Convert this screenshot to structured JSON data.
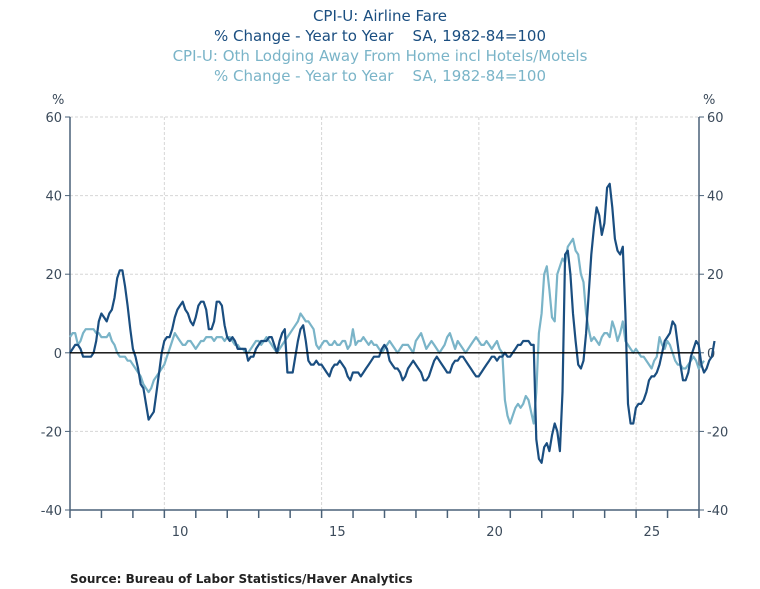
{
  "chart_data": {
    "type": "line",
    "titles": [
      {
        "text": "CPI-U: Airline Fare",
        "series": 0
      },
      {
        "text": "% Change - Year to Year    SA, 1982-84=100",
        "series": 0
      },
      {
        "text": "CPI-U: Oth Lodging Away From Home incl Hotels/Motels",
        "series": 1
      },
      {
        "text": "% Change - Year to Year    SA, 1982-84=100",
        "series": 1
      }
    ],
    "ylabel_left": "%",
    "ylabel_right": "%",
    "ylim": [
      -40,
      60
    ],
    "yticks": [
      60,
      40,
      20,
      0,
      -20,
      -40
    ],
    "xlim": [
      2007,
      2027
    ],
    "xtick_labels": [
      {
        "year": 2010,
        "label": "10"
      },
      {
        "year": 2015,
        "label": "15"
      },
      {
        "year": 2020,
        "label": "20"
      },
      {
        "year": 2025,
        "label": "25"
      }
    ],
    "grid": true,
    "x_start": 2007.0,
    "x_step": 0.0833,
    "series": [
      {
        "name": "CPI-U: Airline Fare",
        "color": "#1a4e80",
        "values": [
          0,
          1,
          2,
          2,
          1,
          -1,
          -1,
          -1,
          -1,
          0,
          3,
          8,
          10,
          9,
          8,
          10,
          11,
          14,
          19,
          21,
          21,
          17,
          12,
          6,
          1,
          -1,
          -4,
          -8,
          -9,
          -13,
          -17,
          -16,
          -15,
          -10,
          -5,
          0,
          3,
          4,
          4,
          6,
          9,
          11,
          12,
          13,
          11,
          10,
          8,
          7,
          9,
          12,
          13,
          13,
          11,
          6,
          6,
          8,
          13,
          13,
          12,
          7,
          4,
          3,
          4,
          3,
          1,
          1,
          1,
          1,
          -2,
          -1,
          -1,
          1,
          2,
          3,
          3,
          3,
          4,
          4,
          2,
          0,
          3,
          5,
          6,
          -5,
          -5,
          -5,
          -1,
          3,
          6,
          7,
          3,
          -2,
          -3,
          -3,
          -2,
          -3,
          -3,
          -4,
          -5,
          -6,
          -4,
          -3,
          -3,
          -2,
          -3,
          -4,
          -6,
          -7,
          -5,
          -5,
          -5,
          -6,
          -5,
          -4,
          -3,
          -2,
          -1,
          -1,
          -1,
          1,
          2,
          1,
          -2,
          -3,
          -4,
          -4,
          -5,
          -7,
          -6,
          -4,
          -3,
          -2,
          -3,
          -4,
          -5,
          -7,
          -7,
          -6,
          -4,
          -2,
          -1,
          -2,
          -3,
          -4,
          -5,
          -5,
          -3,
          -2,
          -2,
          -1,
          -1,
          -2,
          -3,
          -4,
          -5,
          -6,
          -6,
          -5,
          -4,
          -3,
          -2,
          -1,
          -1,
          -2,
          -1,
          -1,
          0,
          -1,
          -1,
          0,
          1,
          2,
          2,
          3,
          3,
          3,
          2,
          2,
          -22,
          -27,
          -28,
          -24,
          -23,
          -25,
          -21,
          -18,
          -20,
          -25,
          -10,
          25,
          26,
          20,
          10,
          3,
          -3,
          -4,
          -2,
          5,
          15,
          25,
          32,
          37,
          35,
          30,
          33,
          42,
          43,
          37,
          29,
          26,
          25,
          27,
          10,
          -13,
          -18,
          -18,
          -14,
          -13,
          -13,
          -12,
          -10,
          -7,
          -6,
          -6,
          -5,
          -3,
          0,
          3,
          4,
          5,
          8,
          7,
          2,
          -3,
          -7,
          -7,
          -5,
          -1,
          1,
          3,
          2,
          -3,
          -5,
          -4,
          -2,
          -1,
          3
        ]
      },
      {
        "name": "CPI-U: Oth Lodging Away From Home incl Hotels/Motels",
        "color": "#7ab4c8",
        "values": [
          4,
          5,
          5,
          2,
          3,
          5,
          6,
          6,
          6,
          6,
          5,
          5,
          4,
          4,
          4,
          5,
          3,
          2,
          0,
          -1,
          -1,
          -1,
          -2,
          -2,
          -3,
          -4,
          -5,
          -6,
          -8,
          -9,
          -10,
          -9,
          -7,
          -6,
          -5,
          -4,
          -3,
          -1,
          1,
          3,
          5,
          4,
          3,
          2,
          2,
          3,
          3,
          2,
          1,
          2,
          3,
          3,
          4,
          4,
          4,
          3,
          4,
          4,
          4,
          3,
          4,
          4,
          3,
          2,
          2,
          1,
          1,
          0,
          0,
          1,
          2,
          3,
          3,
          2,
          3,
          4,
          3,
          2,
          1,
          0,
          1,
          2,
          3,
          4,
          5,
          6,
          7,
          8,
          10,
          9,
          8,
          8,
          7,
          6,
          2,
          1,
          2,
          3,
          3,
          2,
          2,
          3,
          2,
          2,
          3,
          3,
          1,
          2,
          6,
          2,
          3,
          3,
          4,
          3,
          2,
          3,
          2,
          2,
          1,
          0,
          1,
          2,
          3,
          2,
          1,
          0,
          1,
          2,
          2,
          2,
          1,
          0,
          3,
          4,
          5,
          3,
          1,
          2,
          3,
          2,
          1,
          0,
          1,
          2,
          4,
          5,
          3,
          1,
          3,
          2,
          1,
          0,
          1,
          2,
          3,
          4,
          3,
          2,
          2,
          3,
          2,
          1,
          2,
          3,
          1,
          0,
          -12,
          -16,
          -18,
          -16,
          -14,
          -13,
          -14,
          -13,
          -11,
          -12,
          -15,
          -18,
          -10,
          5,
          10,
          20,
          22,
          16,
          9,
          8,
          20,
          22,
          24,
          23,
          27,
          28,
          29,
          26,
          25,
          20,
          18,
          10,
          6,
          3,
          4,
          3,
          2,
          4,
          5,
          5,
          4,
          8,
          6,
          3,
          5,
          8,
          3,
          2,
          1,
          0,
          1,
          0,
          -1,
          -1,
          -2,
          -3,
          -4,
          -2,
          -1,
          4,
          2,
          1,
          3,
          2,
          0,
          -2,
          -3,
          -3,
          -4,
          -4,
          -3,
          -2,
          -1,
          -2,
          -4,
          -3,
          -2
        ]
      }
    ],
    "legend": "titles-top"
  },
  "source": "Source:  Bureau of Labor Statistics/Haver Analytics"
}
